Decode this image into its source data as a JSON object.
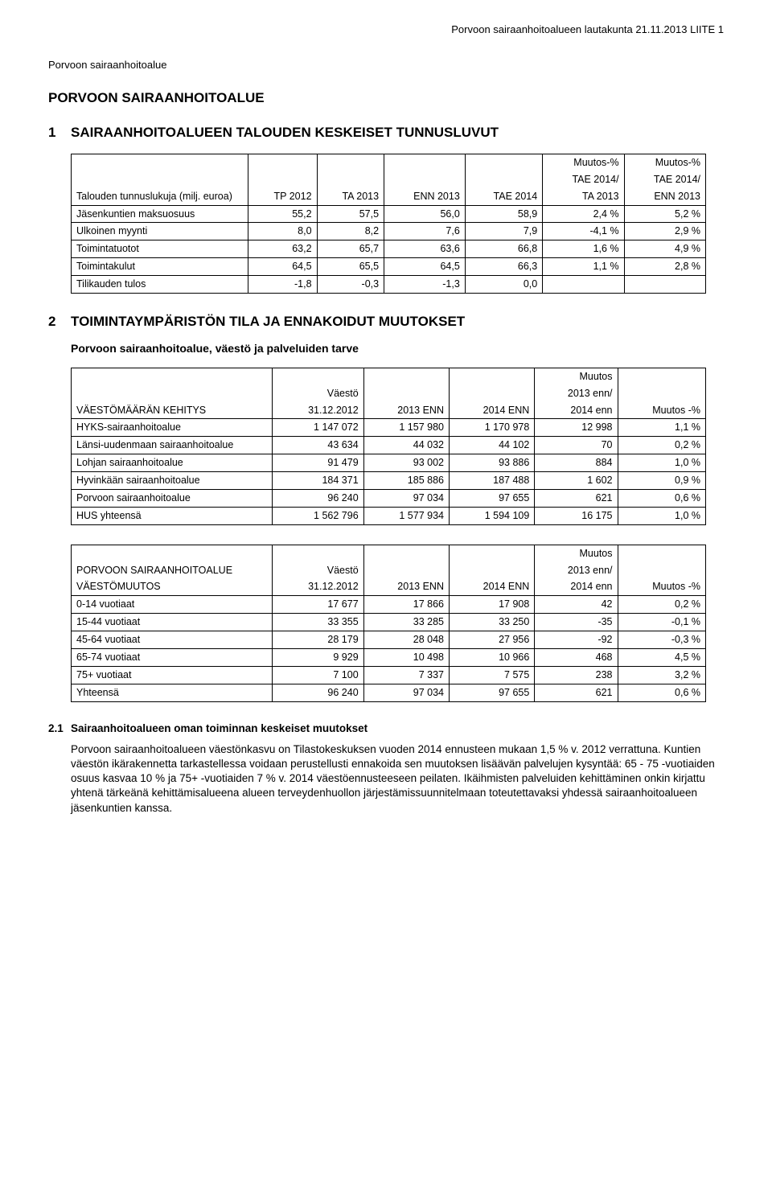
{
  "header_line": "Porvoon sairaanhoitoalueen lautakunta 21.11.2013 LIITE 1",
  "doc_subtitle": "Porvoon sairaanhoitoalue",
  "main_title": "PORVOON SAIRAANHOITOALUE",
  "section1": {
    "num": "1",
    "heading": "SAIRAANHOITOALUEEN TALOUDEN KESKEISET TUNNUSLUVUT"
  },
  "table1": {
    "col_label": "Talouden tunnuslukuja (milj. euroa)",
    "c1": "TP 2012",
    "c2": "TA 2013",
    "c3": "ENN 2013",
    "c4": "TAE 2014",
    "c5a": "Muutos-%",
    "c5b": "TAE 2014/",
    "c5c": "TA 2013",
    "c6a": "Muutos-%",
    "c6b": "TAE 2014/",
    "c6c": "ENN 2013",
    "rows": [
      {
        "l": "Jäsenkuntien maksuosuus",
        "a": "55,2",
        "b": "57,5",
        "c": "56,0",
        "d": "58,9",
        "e": "2,4 %",
        "f": "5,2 %"
      },
      {
        "l": "Ulkoinen myynti",
        "a": "8,0",
        "b": "8,2",
        "c": "7,6",
        "d": "7,9",
        "e": "-4,1 %",
        "f": "2,9 %"
      },
      {
        "l": "Toimintatuotot",
        "a": "63,2",
        "b": "65,7",
        "c": "63,6",
        "d": "66,8",
        "e": "1,6 %",
        "f": "4,9 %"
      },
      {
        "l": "Toimintakulut",
        "a": "64,5",
        "b": "65,5",
        "c": "64,5",
        "d": "66,3",
        "e": "1,1 %",
        "f": "2,8 %"
      },
      {
        "l": "Tilikauden tulos",
        "a": "-1,8",
        "b": "-0,3",
        "c": "-1,3",
        "d": "0,0",
        "e": "",
        "f": ""
      }
    ]
  },
  "section2": {
    "num": "2",
    "heading": "TOIMINTAYMPÄRISTÖN TILA JA ENNAKOIDUT MUUTOKSET",
    "sub": "Porvoon sairaanhoitoalue, väestö ja palveluiden tarve"
  },
  "table2": {
    "col_label": "VÄESTÖMÄÄRÄN KEHITYS",
    "c1a": "Väestö",
    "c1b": "31.12.2012",
    "c2": "2013 ENN",
    "c3": "2014 ENN",
    "c4a": "Muutos",
    "c4b": "2013 enn/",
    "c4c": "2014 enn",
    "c5": "Muutos -%",
    "rows": [
      {
        "l": "HYKS-sairaanhoitoalue",
        "a": "1 147 072",
        "b": "1 157 980",
        "c": "1 170 978",
        "d": "12 998",
        "e": "1,1 %"
      },
      {
        "l": "Länsi-uudenmaan sairaanhoitoalue",
        "a": "43 634",
        "b": "44 032",
        "c": "44 102",
        "d": "70",
        "e": "0,2 %"
      },
      {
        "l": "Lohjan sairaanhoitoalue",
        "a": "91 479",
        "b": "93 002",
        "c": "93 886",
        "d": "884",
        "e": "1,0 %"
      },
      {
        "l": "Hyvinkään sairaanhoitoalue",
        "a": "184 371",
        "b": "185 886",
        "c": "187 488",
        "d": "1 602",
        "e": "0,9 %"
      },
      {
        "l": "Porvoon sairaanhoitoalue",
        "a": "96 240",
        "b": "97 034",
        "c": "97 655",
        "d": "621",
        "e": "0,6 %"
      },
      {
        "l": "HUS yhteensä",
        "a": "1 562 796",
        "b": "1 577 934",
        "c": "1 594 109",
        "d": "16 175",
        "e": "1,0 %"
      }
    ]
  },
  "table3": {
    "col_label_a": "PORVOON SAIRAANHOITOALUE",
    "col_label_b": "VÄESTÖMUUTOS",
    "c1a": "Väestö",
    "c1b": "31.12.2012",
    "c2": "2013 ENN",
    "c3": "2014 ENN",
    "c4a": "Muutos",
    "c4b": "2013 enn/",
    "c4c": "2014 enn",
    "c5": "Muutos -%",
    "rows": [
      {
        "l": "0-14 vuotiaat",
        "a": "17 677",
        "b": "17 866",
        "c": "17 908",
        "d": "42",
        "e": "0,2 %"
      },
      {
        "l": "15-44 vuotiaat",
        "a": "33 355",
        "b": "33 285",
        "c": "33 250",
        "d": "-35",
        "e": "-0,1 %"
      },
      {
        "l": "45-64 vuotiaat",
        "a": "28 179",
        "b": "28 048",
        "c": "27 956",
        "d": "-92",
        "e": "-0,3 %"
      },
      {
        "l": "65-74 vuotiaat",
        "a": "9 929",
        "b": "10 498",
        "c": "10 966",
        "d": "468",
        "e": "4,5 %"
      },
      {
        "l": "75+ vuotiaat",
        "a": "7 100",
        "b": "7 337",
        "c": "7 575",
        "d": "238",
        "e": "3,2 %"
      },
      {
        "l": "Yhteensä",
        "a": "96 240",
        "b": "97 034",
        "c": "97 655",
        "d": "621",
        "e": "0,6 %"
      }
    ]
  },
  "subsection21": {
    "num": "2.1",
    "heading": "Sairaanhoitoalueen oman toiminnan keskeiset muutokset",
    "p1": "Porvoon sairaanhoitoalueen väestönkasvu on Tilastokeskuksen vuoden 2014 ennusteen mukaan 1,5 % v. 2012 verrattuna. Kuntien väestön ikärakennetta tarkastellessa voidaan perustellusti ennakoida sen muutoksen lisäävän palvelujen kysyntää: 65 - 75 -vuotiaiden osuus kasvaa 10 % ja 75+ -vuotiaiden 7 % v. 2014 väestöennusteeseen peilaten. Ikäihmisten palveluiden kehittäminen onkin kirjattu yhtenä tärkeänä kehittämisalueena alueen terveydenhuollon järjestämissuunnitelmaan toteutettavaksi yhdessä sairaanhoitoalueen jäsenkuntien kanssa."
  }
}
